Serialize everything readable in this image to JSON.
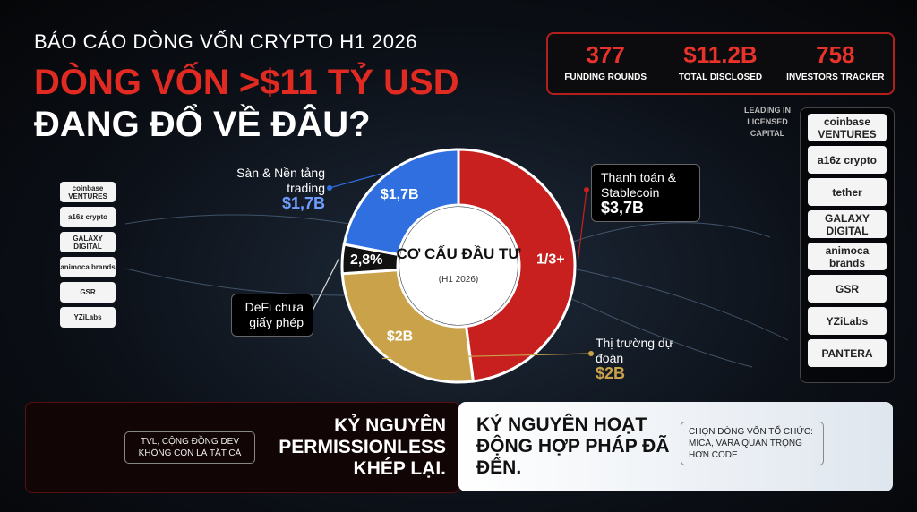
{
  "header": {
    "kicker": "BÁO CÁO DÒNG VỐN CRYPTO H1 2026",
    "title_line1": "DÒNG VỐN >$11 TỶ USD",
    "title_line2": "ĐANG ĐỔ VỀ ĐÂU?"
  },
  "stats": [
    {
      "value": "377",
      "label": "FUNDING ROUNDS"
    },
    {
      "value": "$11.2B",
      "label": "TOTAL DISCLOSED"
    },
    {
      "value": "758",
      "label": "INVESTORS TRACKER"
    }
  ],
  "leading_label": "LEADING IN LICENSED CAPITAL",
  "left_investors": [
    "coinbase VENTURES",
    "a16z crypto",
    "GALAXY DIGITAL",
    "animoca brands",
    "GSR",
    "YZiLabs"
  ],
  "right_investors": [
    "coinbase VENTURES",
    "a16z crypto",
    "tether",
    "GALAXY DIGITAL",
    "animoca brands",
    "GSR",
    "YZiLabs",
    "PANTERA"
  ],
  "chart_data": {
    "type": "donut",
    "center_title": "CƠ CẤU ĐẦU TƯ",
    "center_subtitle": "(H1 2026)",
    "categories": [
      "Thanh toán & Stablecoin",
      "Thị trường dự đoán",
      "DeFi chưa giấy phép",
      "Sàn & Nền tảng trading"
    ],
    "values": [
      3.7,
      2,
      0.31,
      1.7
    ],
    "value_labels": [
      "$3,7B",
      "$2B",
      null,
      "$1,7B"
    ],
    "inner_labels": [
      "1/3+",
      "$2B",
      "2,8%",
      "$1,7B"
    ],
    "colors": [
      "#c8201e",
      "#c9a24a",
      "#111111",
      "#2f6fe0"
    ]
  },
  "footer": {
    "left_note": "TVL, CỘNG ĐỒNG DEV KHÔNG CÒN LÀ TẤT CẢ",
    "left_title": "KỶ NGUYÊN PERMISSIONLESS KHÉP LẠI.",
    "right_title": "KỶ NGUYÊN HOẠT ĐỘNG HỢP PHÁP ĐÃ ĐẾN.",
    "right_note": "CHỌN DÒNG VỐN TỔ CHỨC: MICA, VARA QUAN TRỌNG HƠN CODE"
  }
}
